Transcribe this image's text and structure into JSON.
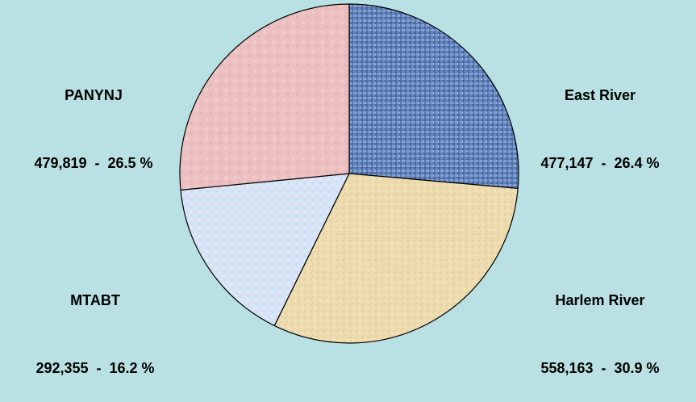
{
  "chart_data": {
    "type": "pie",
    "title": "",
    "start_angle_deg": 0,
    "direction": "clockwise",
    "slices": [
      {
        "name": "East River",
        "value": 477147,
        "value_label": "477,147",
        "percent_label": "26.4 %",
        "color": "#5f7fb6"
      },
      {
        "name": "Harlem River",
        "value": 558163,
        "value_label": "558,163",
        "percent_label": "30.9 %",
        "color": "#eedcb1"
      },
      {
        "name": "MTABT",
        "value": 292355,
        "value_label": "292,355",
        "percent_label": "16.2 %",
        "color": "#d7e6f6"
      },
      {
        "name": "PANYNJ",
        "value": 479819,
        "value_label": "479,819",
        "percent_label": "26.5 %",
        "color": "#eec2c2"
      }
    ],
    "separator": "  -  "
  }
}
